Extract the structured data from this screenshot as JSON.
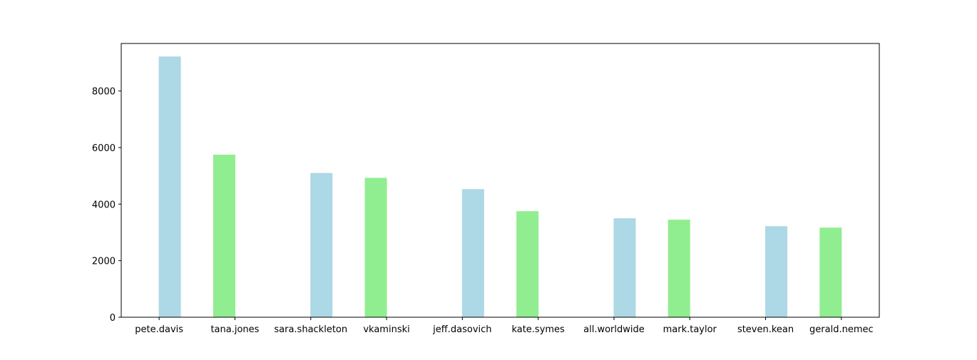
{
  "chart_data": {
    "type": "bar",
    "title": "",
    "xlabel": "",
    "ylabel": "",
    "categories": [
      "pete.davis",
      "tana.jones",
      "sara.shackleton",
      "vkaminski",
      "jeff.dasovich",
      "kate.symes",
      "all.worldwide",
      "mark.taylor",
      "steven.kean",
      "gerald.nemec"
    ],
    "values": [
      9220,
      5750,
      5100,
      4930,
      4530,
      3750,
      3500,
      3450,
      3220,
      3170
    ],
    "bar_colors": [
      "#add8e6",
      "#90ee90",
      "#add8e6",
      "#90ee90",
      "#add8e6",
      "#90ee90",
      "#add8e6",
      "#90ee90",
      "#add8e6",
      "#90ee90"
    ],
    "ylim": [
      0,
      9680
    ],
    "yticks": [
      0,
      2000,
      4000,
      6000,
      8000
    ],
    "grid": false,
    "legend": "none"
  }
}
